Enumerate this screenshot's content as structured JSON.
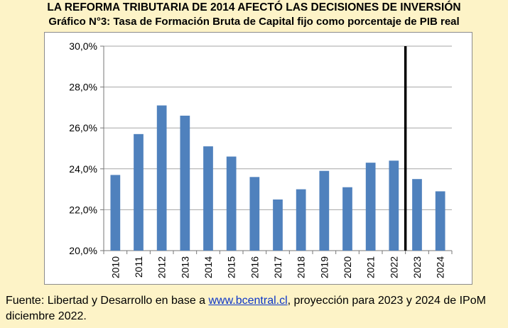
{
  "header": {
    "title": "LA REFORMA TRIBUTARIA DE 2014 AFECTÓ LAS DECISIONES DE INVERSIÓN",
    "subtitle": "Gráfico N°3: Tasa de Formación Bruta de Capital fijo como porcentaje de PIB real"
  },
  "footnote": {
    "prefix": "Fuente: Libertad y Desarrollo en base a ",
    "link_text": "www.bcentral.cl",
    "suffix": ", proyección para 2023 y 2024 de IPoM diciembre 2022."
  },
  "colors": {
    "background": "#fdf3c7",
    "bar": "#4f81bd",
    "grid": "#a6a6a6",
    "divider": "#000000",
    "link": "#0b35c7"
  },
  "chart_data": {
    "type": "bar",
    "title": "Gráfico N°3: Tasa de Formación Bruta de Capital fijo como porcentaje de PIB real",
    "xlabel": "",
    "ylabel": "",
    "ylim": [
      20,
      30
    ],
    "yticks": [
      "20,0%",
      "22,0%",
      "24,0%",
      "26,0%",
      "28,0%",
      "30,0%"
    ],
    "ytick_values": [
      20,
      22,
      24,
      26,
      28,
      30
    ],
    "grid": true,
    "legend": "none",
    "categories": [
      "2010",
      "2011",
      "2012",
      "2013",
      "2014",
      "2015",
      "2016",
      "2017",
      "2018",
      "2019",
      "2020",
      "2021",
      "2022",
      "2023",
      "2024"
    ],
    "values": [
      23.7,
      25.7,
      27.1,
      26.6,
      25.1,
      24.6,
      23.6,
      22.5,
      23.0,
      23.9,
      23.1,
      24.3,
      24.4,
      23.5,
      22.9
    ],
    "divider_after": "2022"
  }
}
